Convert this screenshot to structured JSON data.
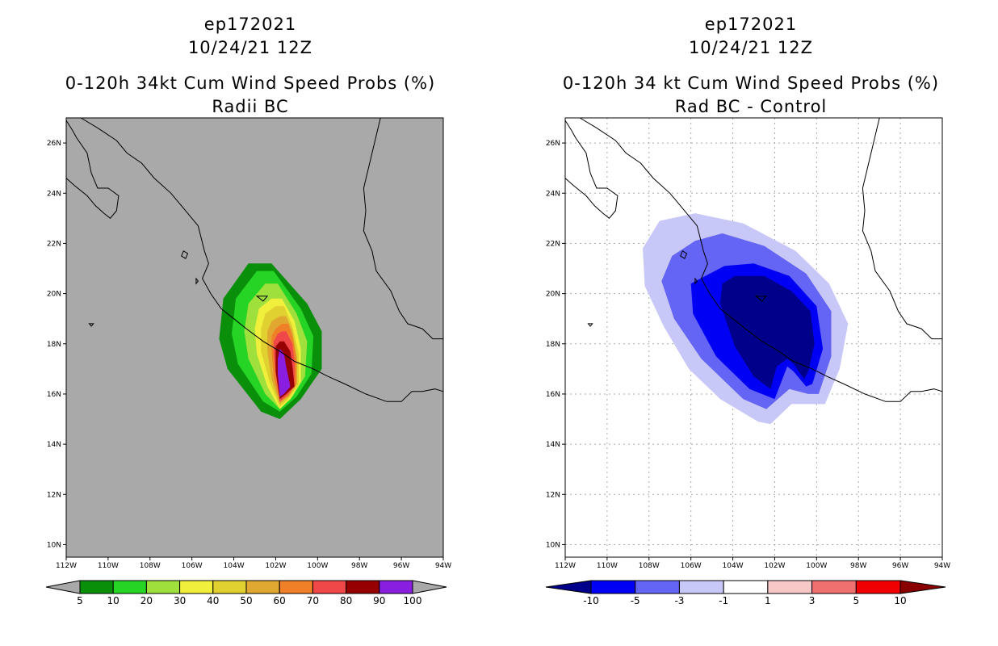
{
  "left_panel": {
    "title_line1": "ep172021",
    "title_line2": "10/24/21 12Z",
    "title_line3": "0-120h 34kt Cum Wind Speed Probs (%)",
    "title_line4": "Radii BC"
  },
  "right_panel": {
    "title_line1": "ep172021",
    "title_line2": "10/24/21 12Z",
    "title_line3": "0-120h 34 kt Cum Wind Speed Probs (%)",
    "title_line4": "Rad BC - Control"
  },
  "colors": {
    "map_background_left": "#a9a9a9",
    "map_background_right": "#ffffff",
    "prob_levels": [
      "#0a8f0a",
      "#26d426",
      "#a0e03c",
      "#f0f03c",
      "#e0d030",
      "#e0a830",
      "#f08028",
      "#f04848",
      "#960000",
      "#8a1ee0"
    ],
    "diff_levels": [
      "#00008a",
      "#0000f5",
      "#6464f5",
      "#c8c8f8",
      "#ffffff",
      "#f8c8c8",
      "#f07070",
      "#f00000",
      "#8a0000"
    ]
  },
  "chart_data": [
    {
      "type": "heatmap",
      "title": "0-120h 34kt Cum Wind Speed Probs (%)",
      "subtitle": "Radii BC",
      "xlim": [
        -112,
        -94
      ],
      "ylim": [
        9.5,
        27
      ],
      "x_tick_values": [
        -112,
        -110,
        -108,
        -106,
        -104,
        -102,
        -100,
        -98,
        -96,
        -94
      ],
      "x_tick_labels": [
        "112W",
        "110W",
        "108W",
        "106W",
        "104W",
        "102W",
        "100W",
        "98W",
        "96W",
        "94W"
      ],
      "y_tick_values": [
        10,
        12,
        14,
        16,
        18,
        20,
        22,
        24,
        26
      ],
      "y_tick_labels": [
        "10N",
        "12N",
        "14N",
        "16N",
        "18N",
        "20N",
        "22N",
        "24N",
        "26N"
      ],
      "grid": false,
      "colorbar_labels": [
        "5",
        "10",
        "20",
        "30",
        "40",
        "50",
        "60",
        "70",
        "80",
        "90",
        "100"
      ],
      "contours": [
        {
          "level": 5,
          "points": [
            [
              -103.3,
              21.2
            ],
            [
              -102.2,
              21.2
            ],
            [
              -100.5,
              19.6
            ],
            [
              -99.8,
              18.5
            ],
            [
              -99.8,
              17.0
            ],
            [
              -100.8,
              15.8
            ],
            [
              -101.8,
              15.0
            ],
            [
              -102.7,
              15.3
            ],
            [
              -104.3,
              17.0
            ],
            [
              -104.7,
              18.2
            ],
            [
              -104.5,
              19.8
            ]
          ]
        },
        {
          "level": 10,
          "points": [
            [
              -102.9,
              20.9
            ],
            [
              -102.1,
              20.9
            ],
            [
              -100.8,
              19.4
            ],
            [
              -100.2,
              18.3
            ],
            [
              -100.3,
              16.8
            ],
            [
              -101.0,
              15.9
            ],
            [
              -101.8,
              15.3
            ],
            [
              -102.6,
              15.7
            ],
            [
              -103.8,
              17.2
            ],
            [
              -104.1,
              18.4
            ],
            [
              -103.9,
              19.8
            ]
          ]
        },
        {
          "level": 20,
          "points": [
            [
              -102.5,
              20.4
            ],
            [
              -101.9,
              20.4
            ],
            [
              -101.0,
              19.2
            ],
            [
              -100.5,
              18.1
            ],
            [
              -100.6,
              16.7
            ],
            [
              -101.2,
              15.9
            ],
            [
              -101.8,
              15.4
            ],
            [
              -102.5,
              16.0
            ],
            [
              -103.3,
              17.4
            ],
            [
              -103.5,
              18.5
            ],
            [
              -103.3,
              19.6
            ]
          ]
        },
        {
          "level": 30,
          "points": [
            [
              -102.2,
              19.8
            ],
            [
              -101.7,
              19.8
            ],
            [
              -101.1,
              18.9
            ],
            [
              -100.8,
              17.8
            ],
            [
              -100.8,
              16.5
            ],
            [
              -101.3,
              15.8
            ],
            [
              -101.8,
              15.4
            ],
            [
              -102.4,
              16.3
            ],
            [
              -102.9,
              17.6
            ],
            [
              -103.0,
              18.6
            ],
            [
              -102.8,
              19.4
            ]
          ]
        },
        {
          "level": 40,
          "points": [
            [
              -102.0,
              19.5
            ],
            [
              -101.6,
              19.5
            ],
            [
              -101.2,
              18.7
            ],
            [
              -100.9,
              17.6
            ],
            [
              -100.9,
              16.4
            ],
            [
              -101.4,
              15.8
            ],
            [
              -101.8,
              15.5
            ],
            [
              -102.3,
              16.5
            ],
            [
              -102.7,
              17.7
            ],
            [
              -102.7,
              18.6
            ],
            [
              -102.5,
              19.2
            ]
          ]
        },
        {
          "level": 50,
          "points": [
            [
              -101.8,
              19.1
            ],
            [
              -101.5,
              19.1
            ],
            [
              -101.2,
              18.5
            ],
            [
              -101.0,
              17.5
            ],
            [
              -101.0,
              16.4
            ],
            [
              -101.4,
              15.9
            ],
            [
              -101.8,
              15.6
            ],
            [
              -102.2,
              16.6
            ],
            [
              -102.4,
              17.7
            ],
            [
              -102.4,
              18.5
            ],
            [
              -102.2,
              18.9
            ]
          ]
        },
        {
          "level": 60,
          "points": [
            [
              -101.7,
              18.8
            ],
            [
              -101.4,
              18.8
            ],
            [
              -101.2,
              18.3
            ],
            [
              -101.0,
              17.4
            ],
            [
              -101.0,
              16.4
            ],
            [
              -101.4,
              15.9
            ],
            [
              -101.8,
              15.7
            ],
            [
              -102.1,
              16.7
            ],
            [
              -102.2,
              17.7
            ],
            [
              -102.2,
              18.3
            ],
            [
              -102.0,
              18.6
            ]
          ]
        },
        {
          "level": 70,
          "points": [
            [
              -101.7,
              18.5
            ],
            [
              -101.5,
              18.5
            ],
            [
              -101.2,
              18.0
            ],
            [
              -101.1,
              17.3
            ],
            [
              -101.1,
              16.4
            ],
            [
              -101.4,
              16.0
            ],
            [
              -101.8,
              15.7
            ],
            [
              -102.0,
              16.8
            ],
            [
              -102.1,
              17.6
            ],
            [
              -102.1,
              18.1
            ],
            [
              -101.9,
              18.4
            ]
          ]
        },
        {
          "level": 80,
          "points": [
            [
              -101.8,
              18.1
            ],
            [
              -101.6,
              18.1
            ],
            [
              -101.3,
              17.7
            ],
            [
              -101.2,
              17.1
            ],
            [
              -101.1,
              16.3
            ],
            [
              -101.5,
              16.0
            ],
            [
              -101.8,
              15.8
            ],
            [
              -102.0,
              16.9
            ],
            [
              -102.0,
              17.5
            ],
            [
              -102.0,
              17.9
            ]
          ]
        },
        {
          "level": 90,
          "points": [
            [
              -101.8,
              17.8
            ],
            [
              -101.6,
              17.6
            ],
            [
              -101.5,
              17.1
            ],
            [
              -101.3,
              16.3
            ],
            [
              -101.6,
              16.0
            ],
            [
              -101.8,
              15.9
            ],
            [
              -101.9,
              16.8
            ],
            [
              -101.9,
              17.4
            ]
          ]
        }
      ]
    },
    {
      "type": "heatmap",
      "title": "0-120h 34 kt Cum Wind Speed Probs (%)",
      "subtitle": "Rad BC - Control",
      "xlim": [
        -112,
        -94
      ],
      "ylim": [
        9.5,
        27
      ],
      "x_tick_values": [
        -112,
        -110,
        -108,
        -106,
        -104,
        -102,
        -100,
        -98,
        -96,
        -94
      ],
      "x_tick_labels": [
        "112W",
        "110W",
        "108W",
        "106W",
        "104W",
        "102W",
        "100W",
        "98W",
        "96W",
        "94W"
      ],
      "y_tick_values": [
        10,
        12,
        14,
        16,
        18,
        20,
        22,
        24,
        26
      ],
      "y_tick_labels": [
        "10N",
        "12N",
        "14N",
        "16N",
        "18N",
        "20N",
        "22N",
        "24N",
        "26N"
      ],
      "grid": true,
      "colorbar_labels": [
        "-10",
        "-5",
        "-3",
        "-1",
        "1",
        "3",
        "5",
        "10"
      ],
      "contours": [
        {
          "level": -1,
          "points": [
            [
              -107.5,
              22.9
            ],
            [
              -105.8,
              23.2
            ],
            [
              -103.5,
              22.8
            ],
            [
              -101.0,
              21.7
            ],
            [
              -99.4,
              20.4
            ],
            [
              -98.5,
              18.8
            ],
            [
              -98.9,
              17.0
            ],
            [
              -99.6,
              15.6
            ],
            [
              -100.3,
              15.6
            ],
            [
              -101.2,
              15.6
            ],
            [
              -102.2,
              14.8
            ],
            [
              -102.8,
              14.9
            ],
            [
              -104.6,
              15.8
            ],
            [
              -106.1,
              17.0
            ],
            [
              -107.3,
              18.7
            ],
            [
              -108.2,
              20.3
            ],
            [
              -108.3,
              21.8
            ]
          ]
        },
        {
          "level": -3,
          "points": [
            [
              -105.8,
              22.1
            ],
            [
              -104.5,
              22.4
            ],
            [
              -102.5,
              21.9
            ],
            [
              -100.5,
              20.8
            ],
            [
              -99.3,
              19.3
            ],
            [
              -99.3,
              17.5
            ],
            [
              -99.9,
              16.0
            ],
            [
              -100.4,
              16.0
            ],
            [
              -101.3,
              16.2
            ],
            [
              -102.4,
              15.4
            ],
            [
              -103.5,
              15.8
            ],
            [
              -105.5,
              17.4
            ],
            [
              -106.8,
              19.0
            ],
            [
              -107.4,
              20.5
            ],
            [
              -106.9,
              21.5
            ]
          ]
        },
        {
          "level": -5,
          "points": [
            [
              -104.4,
              21.1
            ],
            [
              -103.0,
              21.2
            ],
            [
              -101.3,
              20.7
            ],
            [
              -100.0,
              19.5
            ],
            [
              -99.7,
              17.8
            ],
            [
              -100.2,
              16.4
            ],
            [
              -100.5,
              16.3
            ],
            [
              -101.1,
              16.9
            ],
            [
              -101.4,
              17.1
            ],
            [
              -102.0,
              15.8
            ],
            [
              -103.2,
              16.2
            ],
            [
              -104.8,
              17.5
            ],
            [
              -105.9,
              19.2
            ],
            [
              -106.0,
              20.4
            ]
          ]
        },
        {
          "level": -10,
          "points": [
            [
              -103.9,
              20.7
            ],
            [
              -102.5,
              20.7
            ],
            [
              -101.2,
              20.1
            ],
            [
              -100.3,
              19.3
            ],
            [
              -100.1,
              18.0
            ],
            [
              -100.4,
              16.9
            ],
            [
              -100.6,
              16.6
            ],
            [
              -101.1,
              17.2
            ],
            [
              -101.4,
              17.4
            ],
            [
              -101.9,
              17.1
            ],
            [
              -102.2,
              16.2
            ],
            [
              -103.0,
              16.7
            ],
            [
              -103.9,
              17.9
            ],
            [
              -104.6,
              19.6
            ],
            [
              -104.5,
              20.4
            ]
          ]
        }
      ]
    }
  ]
}
